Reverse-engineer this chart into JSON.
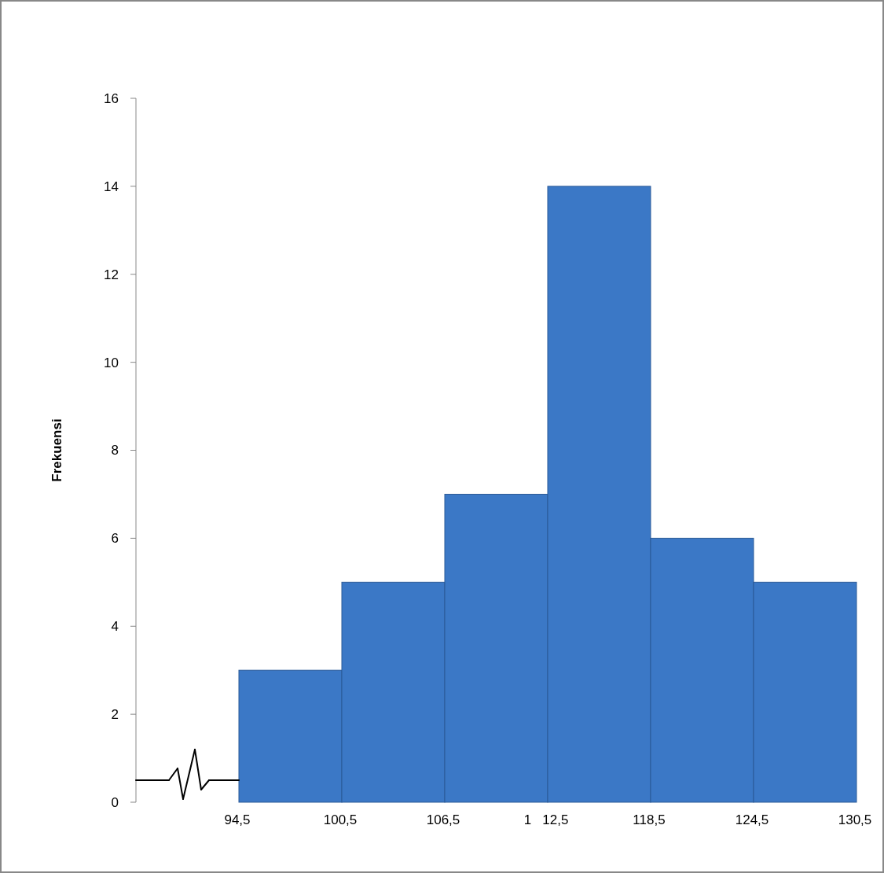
{
  "chart_data": {
    "type": "histogram",
    "ylabel": "Frekuensi",
    "bins": [
      94.5,
      100.5,
      106.5,
      112.5,
      118.5,
      124.5,
      130.5
    ],
    "values": [
      3,
      5,
      7,
      14,
      6,
      5
    ],
    "color": "#3b78c6",
    "xlim": [
      88.5,
      130.5
    ],
    "xticks": [
      {
        "value": 94.5,
        "label": "94,5"
      },
      {
        "value": 100.5,
        "label": "100,5"
      },
      {
        "value": 106.5,
        "label": "106,5"
      },
      {
        "value": 112.5,
        "label": "1   12,5"
      },
      {
        "value": 118.5,
        "label": "118,5"
      },
      {
        "value": 124.5,
        "label": "124,5"
      },
      {
        "value": 130.5,
        "label": "130,5"
      }
    ],
    "ylim": [
      0,
      16
    ],
    "yticks": [
      0,
      2,
      4,
      6,
      8,
      10,
      12,
      14,
      16
    ],
    "grid": false
  }
}
